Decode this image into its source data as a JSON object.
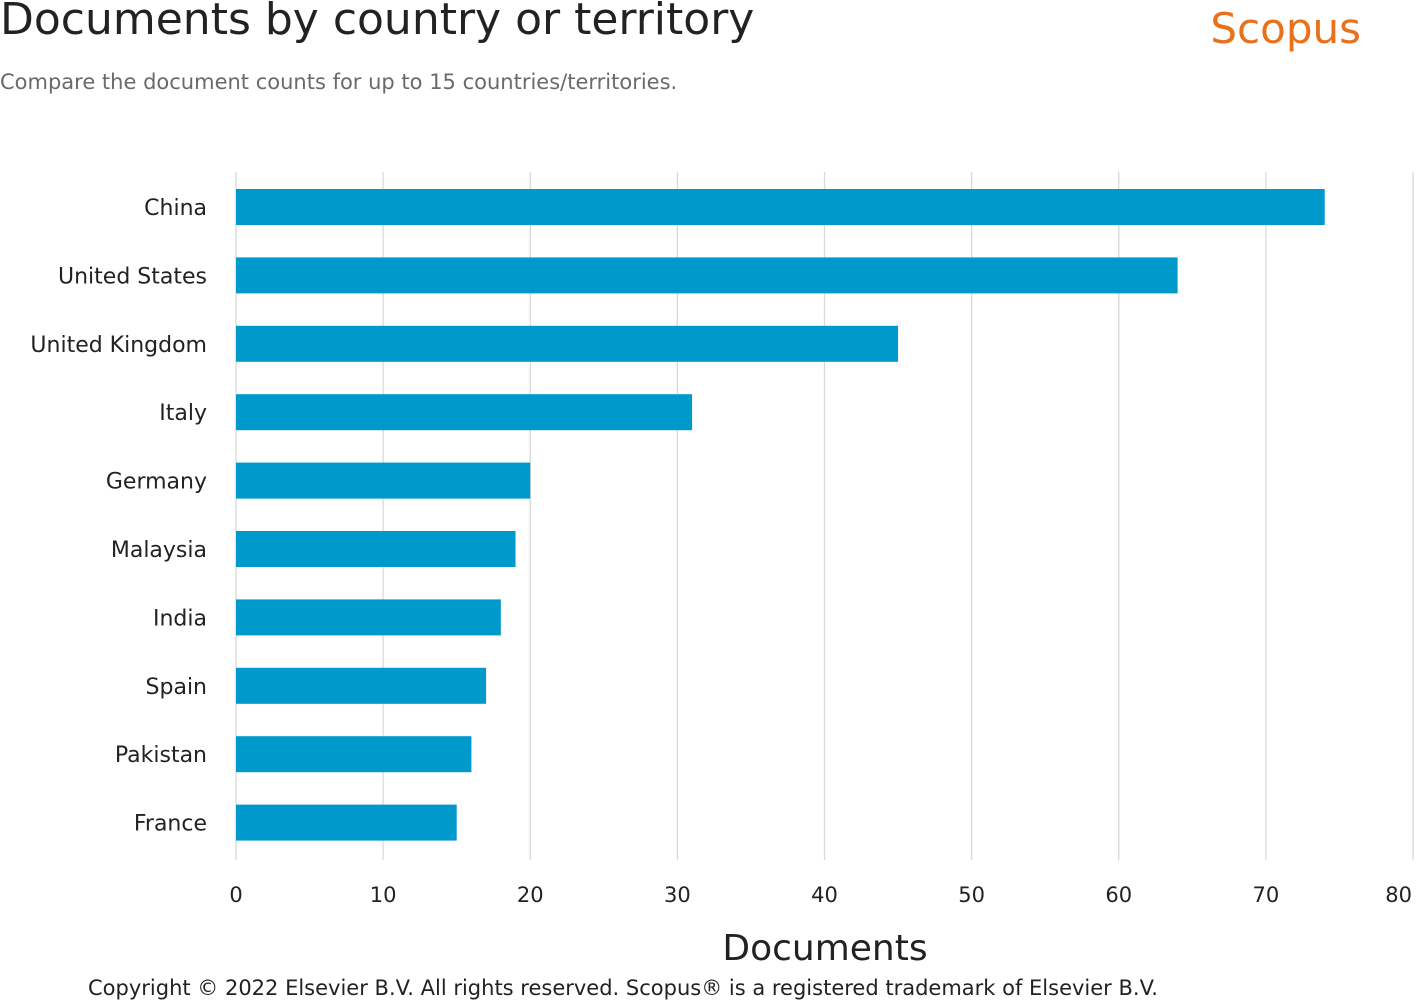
{
  "header": {
    "title": "Documents by country or territory",
    "subtitle": "Compare the document counts for up to 15 countries/territories.",
    "brand": "Scopus"
  },
  "footer": {
    "copyright": "Copyright © 2022 Elsevier B.V. All rights reserved. Scopus® is a registered trademark of Elsevier B.V."
  },
  "colors": {
    "bar": "#0099cc",
    "grid": "#d9d9d9",
    "brand": "#e9711c"
  },
  "chart_data": {
    "type": "bar",
    "orientation": "horizontal",
    "categories": [
      "China",
      "United States",
      "United Kingdom",
      "Italy",
      "Germany",
      "Malaysia",
      "India",
      "Spain",
      "Pakistan",
      "France"
    ],
    "values": [
      74,
      64,
      45,
      31,
      20,
      19,
      18,
      17,
      16,
      15
    ],
    "xlabel": "Documents",
    "ylabel": "",
    "xlim": [
      0,
      80
    ],
    "xticks": [
      "0",
      "10",
      "20",
      "30",
      "40",
      "50",
      "60",
      "70",
      "80"
    ],
    "grid": true,
    "legend": "none"
  }
}
